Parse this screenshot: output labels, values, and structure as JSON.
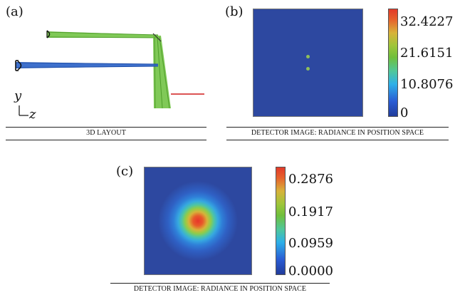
{
  "panels": {
    "a": {
      "label": "(a)",
      "caption": "3D LAYOUT",
      "axes": {
        "y": "y",
        "z": "z"
      },
      "colors": {
        "top_beam": "#6abf3a",
        "bottom_beam": "#2e64c8",
        "scale_bar": "#d01b1b"
      }
    },
    "b": {
      "label": "(b)",
      "caption": "DETECTOR IMAGE: RADIANCE IN POSITION SPACE",
      "colorbar_ticks": [
        "32.4227",
        "21.6151",
        "10.8076",
        "0"
      ],
      "colors": {
        "background": "#2d48a0",
        "spot": "#8fbf5a"
      }
    },
    "c": {
      "label": "(c)",
      "caption": "DETECTOR IMAGE: RADIANCE IN POSITION SPACE",
      "colorbar_ticks": [
        "0.2876",
        "0.1917",
        "0.0959",
        "0.0000"
      ],
      "colors": {
        "background": "#2d48a0",
        "center": "#e8352a"
      }
    }
  }
}
